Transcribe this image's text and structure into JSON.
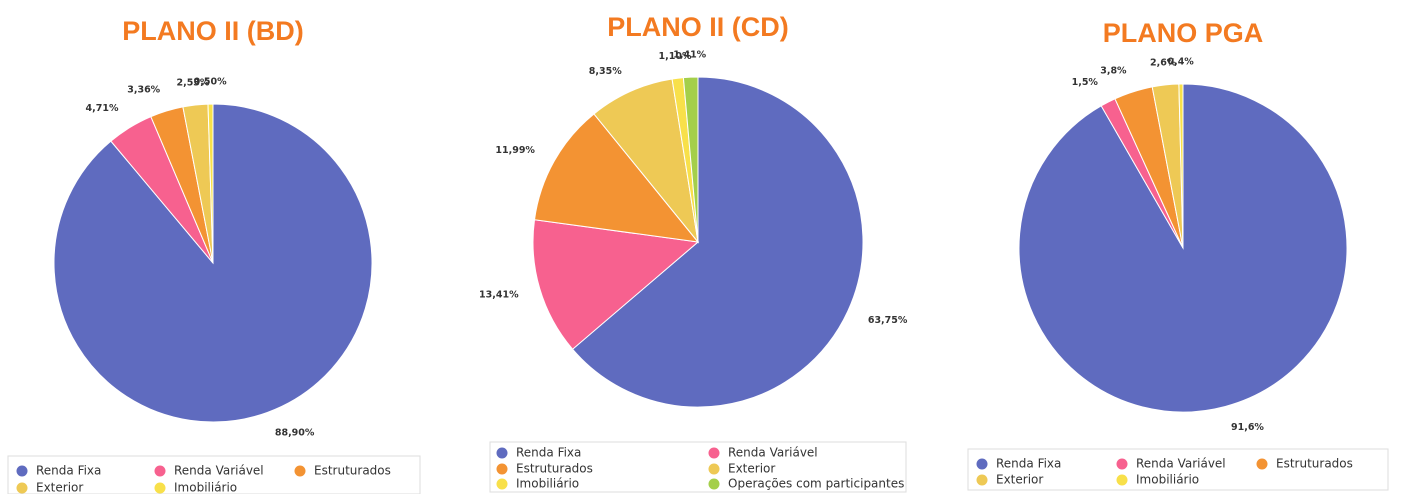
{
  "chart_data": [
    {
      "type": "pie",
      "title": "PLANO II (BD)",
      "categories": [
        "Renda Fixa",
        "Renda Variável",
        "Estruturados",
        "Exterior",
        "Imobiliário"
      ],
      "values": [
        88.9,
        4.71,
        3.36,
        2.53,
        0.5
      ],
      "value_labels": [
        "88,90%",
        "4,71%",
        "3,36%",
        "2,53%",
        "0,50%"
      ],
      "colors": [
        "#5f6bbf",
        "#f7618f",
        "#f39333",
        "#eec955",
        "#f8e04a"
      ]
    },
    {
      "type": "pie",
      "title": "PLANO II (CD)",
      "categories": [
        "Renda Fixa",
        "Renda Variável",
        "Estruturados",
        "Exterior",
        "Imobiliário",
        "Operações com participantes"
      ],
      "values": [
        63.75,
        13.41,
        11.99,
        8.35,
        1.1,
        1.41
      ],
      "value_labels": [
        "63,75%",
        "13,41%",
        "11,99%",
        "8,35%",
        "1,10%",
        "1,41%"
      ],
      "colors": [
        "#5f6bbf",
        "#f7618f",
        "#f39333",
        "#eec955",
        "#f8e04a",
        "#a4cf4a"
      ]
    },
    {
      "type": "pie",
      "title": "PLANO PGA",
      "categories": [
        "Renda Fixa",
        "Renda Variável",
        "Estruturados",
        "Exterior",
        "Imobiliário"
      ],
      "values": [
        91.6,
        1.5,
        3.8,
        2.6,
        0.4
      ],
      "value_labels": [
        "91,6%",
        "1,5%",
        "3,8%",
        "2,6%",
        "0,4%"
      ],
      "colors": [
        "#5f6bbf",
        "#f7618f",
        "#f39333",
        "#eec955",
        "#f8e04a"
      ]
    }
  ]
}
